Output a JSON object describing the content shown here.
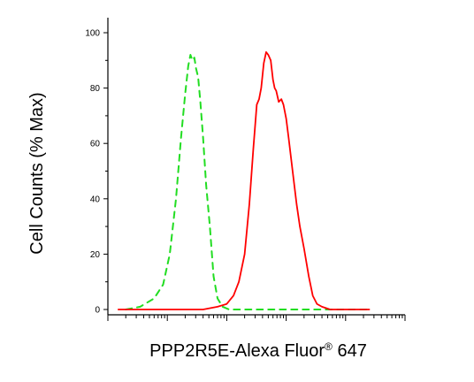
{
  "chart_data": {
    "type": "line",
    "title": "",
    "xlabel": {
      "prefix": "PPP2R5E-Alexa Fluor",
      "mark": "®",
      "suffix": " 647"
    },
    "ylabel": "Cell Counts (% Max)",
    "x_scale": "log",
    "xlim": [
      10,
      1000000
    ],
    "ylim": [
      0,
      100
    ],
    "yticks": [
      "0",
      "20",
      "40",
      "60",
      "80",
      "100"
    ],
    "grid": false,
    "legend": "none",
    "series": [
      {
        "style": "dashed",
        "color": "#22dd22",
        "points": [
          [
            20,
            0
          ],
          [
            35,
            1
          ],
          [
            60,
            4
          ],
          [
            85,
            9
          ],
          [
            110,
            20
          ],
          [
            140,
            40
          ],
          [
            170,
            62
          ],
          [
            200,
            78
          ],
          [
            225,
            88
          ],
          [
            245,
            92
          ],
          [
            265,
            90
          ],
          [
            285,
            91
          ],
          [
            305,
            87
          ],
          [
            330,
            84
          ],
          [
            360,
            75
          ],
          [
            400,
            62
          ],
          [
            450,
            45
          ],
          [
            520,
            30
          ],
          [
            600,
            12
          ],
          [
            700,
            4
          ],
          [
            850,
            1
          ],
          [
            1100,
            0
          ],
          [
            100000,
            0
          ],
          [
            250000,
            0
          ]
        ]
      },
      {
        "style": "solid",
        "color": "#ff0000",
        "points": [
          [
            15,
            0
          ],
          [
            400,
            0
          ],
          [
            700,
            1
          ],
          [
            1000,
            2
          ],
          [
            1300,
            5
          ],
          [
            1600,
            10
          ],
          [
            2000,
            20
          ],
          [
            2400,
            38
          ],
          [
            2800,
            58
          ],
          [
            3200,
            74
          ],
          [
            3500,
            76
          ],
          [
            3800,
            80
          ],
          [
            4200,
            89
          ],
          [
            4600,
            93
          ],
          [
            5000,
            92
          ],
          [
            5500,
            90
          ],
          [
            6000,
            83
          ],
          [
            6400,
            80
          ],
          [
            6800,
            79
          ],
          [
            7500,
            75
          ],
          [
            8300,
            76
          ],
          [
            9000,
            74
          ],
          [
            10000,
            69
          ],
          [
            11000,
            62
          ],
          [
            13000,
            49
          ],
          [
            15000,
            38
          ],
          [
            17000,
            30
          ],
          [
            20000,
            22
          ],
          [
            24000,
            12
          ],
          [
            28000,
            5
          ],
          [
            33000,
            2
          ],
          [
            40000,
            1
          ],
          [
            55000,
            0
          ],
          [
            100000,
            0
          ],
          [
            250000,
            0
          ]
        ]
      }
    ],
    "colors": {
      "axis": "#000000",
      "green_series": "#22dd22",
      "red_series": "#ff0000"
    }
  }
}
